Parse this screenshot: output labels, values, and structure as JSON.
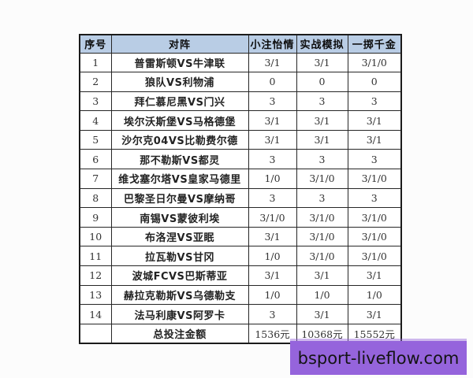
{
  "table": {
    "headers": [
      "序号",
      "对阵",
      "小注怡情",
      "实战模拟",
      "一掷千金"
    ],
    "header_bg_color": "#b9cde5",
    "border_color": "#262626",
    "rows": [
      {
        "no": "1",
        "match": "普雷斯顿VS牛津联",
        "values": [
          "3/1",
          "3/1",
          "3/1/0"
        ]
      },
      {
        "no": "2",
        "match": "狼队VS利物浦",
        "values": [
          "0",
          "0",
          "0"
        ]
      },
      {
        "no": "3",
        "match": "拜仁慕尼黑VS门兴",
        "values": [
          "3",
          "3",
          "3"
        ]
      },
      {
        "no": "4",
        "match": "埃尔沃斯堡VS马格德堡",
        "values": [
          "3/1",
          "3/1",
          "3/1"
        ]
      },
      {
        "no": "5",
        "match": "沙尔克04VS比勒费尔德",
        "values": [
          "3/1",
          "3/1",
          "3/1"
        ]
      },
      {
        "no": "6",
        "match": "那不勒斯VS都灵",
        "values": [
          "3",
          "3",
          "3"
        ]
      },
      {
        "no": "7",
        "match": "维戈塞尔塔VS皇家马德里",
        "values": [
          "1/0",
          "3/1/0",
          "3/1/0"
        ]
      },
      {
        "no": "8",
        "match": "巴黎圣日尔曼VS摩纳哥",
        "values": [
          "3",
          "3",
          "3"
        ]
      },
      {
        "no": "9",
        "match": "南锡VS蒙彼利埃",
        "values": [
          "3/1/0",
          "3/1/0",
          "3/1/0"
        ]
      },
      {
        "no": "10",
        "match": "布洛涅VS亚眠",
        "values": [
          "3/1",
          "3/1/0",
          "3/1/0"
        ]
      },
      {
        "no": "11",
        "match": "拉瓦勒VS甘冈",
        "values": [
          "1/0",
          "3/1/0",
          "3/1/0"
        ]
      },
      {
        "no": "12",
        "match": "波城FCVS巴斯蒂亚",
        "values": [
          "3/1",
          "3/1",
          "3/1"
        ]
      },
      {
        "no": "13",
        "match": "赫拉克勒斯VS乌德勒支",
        "values": [
          "1/0",
          "1/0",
          "1/0"
        ]
      },
      {
        "no": "14",
        "match": "法马利康VS阿罗卡",
        "values": [
          "3",
          "3/1",
          "3/1"
        ]
      }
    ],
    "total": {
      "label": "总投注金额",
      "values": [
        "1536元",
        "10368元",
        "15552元"
      ]
    }
  },
  "banner": {
    "text": "bsport-liveflow.com",
    "bg_color": "#9564dc"
  }
}
